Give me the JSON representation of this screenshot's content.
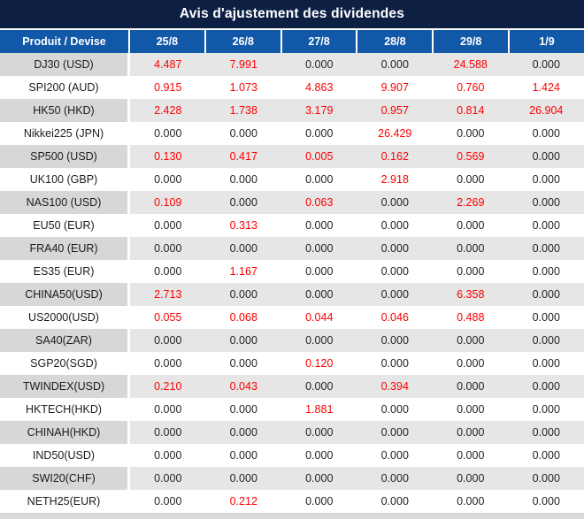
{
  "title": "Avis d'ajustement des dividendes",
  "colors": {
    "title_bar_navy": "#0d2044",
    "header_blue": "#1158a8",
    "row_gray_label": "#d7d7d7",
    "row_gray_values": "#e6e6e6",
    "row_white": "#ffffff",
    "value_red": "#fe0000",
    "value_zero_black": "#242424"
  },
  "table": {
    "product_header": "Produit / Devise",
    "date_columns": [
      "25/8",
      "26/8",
      "27/8",
      "28/8",
      "29/8",
      "1/9"
    ],
    "zero_string": "0.000",
    "rows": [
      {
        "product": "DJ30 (USD)",
        "values": [
          "4.487",
          "7.991",
          "0.000",
          "0.000",
          "24.588",
          "0.000"
        ]
      },
      {
        "product": "SPI200 (AUD)",
        "values": [
          "0.915",
          "1.073",
          "4.863",
          "9.907",
          "0.760",
          "1.424"
        ]
      },
      {
        "product": "HK50 (HKD)",
        "values": [
          "2.428",
          "1.738",
          "3.179",
          "0.957",
          "0.814",
          "26.904"
        ]
      },
      {
        "product": "Nikkei225 (JPN)",
        "values": [
          "0.000",
          "0.000",
          "0.000",
          "26.429",
          "0.000",
          "0.000"
        ]
      },
      {
        "product": "SP500 (USD)",
        "values": [
          "0.130",
          "0.417",
          "0.005",
          "0.162",
          "0.569",
          "0.000"
        ]
      },
      {
        "product": "UK100 (GBP)",
        "values": [
          "0.000",
          "0.000",
          "0.000",
          "2.918",
          "0.000",
          "0.000"
        ]
      },
      {
        "product": "NAS100 (USD)",
        "values": [
          "0.109",
          "0.000",
          "0.063",
          "0.000",
          "2.269",
          "0.000"
        ]
      },
      {
        "product": "EU50 (EUR)",
        "values": [
          "0.000",
          "0.313",
          "0.000",
          "0.000",
          "0.000",
          "0.000"
        ]
      },
      {
        "product": "FRA40 (EUR)",
        "values": [
          "0.000",
          "0.000",
          "0.000",
          "0.000",
          "0.000",
          "0.000"
        ]
      },
      {
        "product": "ES35 (EUR)",
        "values": [
          "0.000",
          "1.167",
          "0.000",
          "0.000",
          "0.000",
          "0.000"
        ]
      },
      {
        "product": "CHINA50(USD)",
        "values": [
          "2.713",
          "0.000",
          "0.000",
          "0.000",
          "6.358",
          "0.000"
        ]
      },
      {
        "product": "US2000(USD)",
        "values": [
          "0.055",
          "0.068",
          "0.044",
          "0.046",
          "0.488",
          "0.000"
        ]
      },
      {
        "product": "SA40(ZAR)",
        "values": [
          "0.000",
          "0.000",
          "0.000",
          "0.000",
          "0.000",
          "0.000"
        ]
      },
      {
        "product": "SGP20(SGD)",
        "values": [
          "0.000",
          "0.000",
          "0.120",
          "0.000",
          "0.000",
          "0.000"
        ]
      },
      {
        "product": "TWINDEX(USD)",
        "values": [
          "0.210",
          "0.043",
          "0.000",
          "0.394",
          "0.000",
          "0.000"
        ]
      },
      {
        "product": "HKTECH(HKD)",
        "values": [
          "0.000",
          "0.000",
          "1.881",
          "0.000",
          "0.000",
          "0.000"
        ]
      },
      {
        "product": "CHINAH(HKD)",
        "values": [
          "0.000",
          "0.000",
          "0.000",
          "0.000",
          "0.000",
          "0.000"
        ]
      },
      {
        "product": "IND50(USD)",
        "values": [
          "0.000",
          "0.000",
          "0.000",
          "0.000",
          "0.000",
          "0.000"
        ]
      },
      {
        "product": "SWI20(CHF)",
        "values": [
          "0.000",
          "0.000",
          "0.000",
          "0.000",
          "0.000",
          "0.000"
        ]
      },
      {
        "product": "NETH25(EUR)",
        "values": [
          "0.000",
          "0.212",
          "0.000",
          "0.000",
          "0.000",
          "0.000"
        ]
      }
    ]
  }
}
